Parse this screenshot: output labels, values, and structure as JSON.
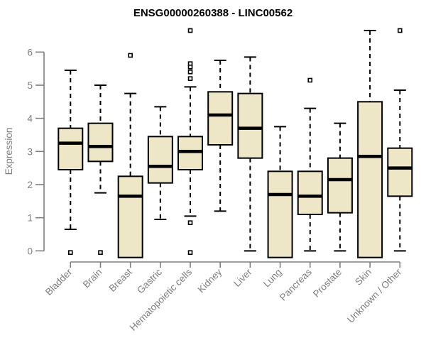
{
  "chart_data": {
    "type": "boxplot",
    "title": "ENSG00000260388 - LINC00562",
    "ylabel": "Expression",
    "xlabel": "",
    "ylim": [
      -0.5,
      6.9
    ],
    "yticks": [
      0,
      1,
      2,
      3,
      4,
      5,
      6
    ],
    "grid": "off",
    "legend": "none",
    "categories": [
      "Bladder",
      "Brain",
      "Breast",
      "Gastric",
      "Hematopoietic cells",
      "Kidney",
      "Liver",
      "Lung",
      "Pancreas",
      "Prostate",
      "Skin",
      "Unknown / Other"
    ],
    "boxes": [
      {
        "category": "Bladder",
        "low": 0.65,
        "q1": 2.45,
        "median": 3.25,
        "q3": 3.7,
        "high": 5.45,
        "outliers": [
          -0.05
        ]
      },
      {
        "category": "Brain",
        "low": 1.75,
        "q1": 2.7,
        "median": 3.15,
        "q3": 3.85,
        "high": 5.0,
        "outliers": [
          -0.05
        ]
      },
      {
        "category": "Breast",
        "low": -0.2,
        "q1": -0.2,
        "median": 1.65,
        "q3": 2.25,
        "high": 4.75,
        "outliers": [
          5.9
        ]
      },
      {
        "category": "Gastric",
        "low": 0.95,
        "q1": 2.05,
        "median": 2.55,
        "q3": 3.45,
        "high": 4.35,
        "outliers": []
      },
      {
        "category": "Hematopoietic cells",
        "low": 1.05,
        "q1": 2.45,
        "median": 3.0,
        "q3": 3.45,
        "high": 4.95,
        "outliers": [
          6.65,
          5.65,
          5.55,
          5.4,
          5.2,
          0.85,
          -0.05
        ]
      },
      {
        "category": "Kidney",
        "low": 1.2,
        "q1": 3.2,
        "median": 4.1,
        "q3": 4.8,
        "high": 5.75,
        "outliers": []
      },
      {
        "category": "Liver",
        "low": 0.0,
        "q1": 2.8,
        "median": 3.7,
        "q3": 4.75,
        "high": 5.85,
        "outliers": []
      },
      {
        "category": "Lung",
        "low": -0.2,
        "q1": -0.2,
        "median": 1.7,
        "q3": 2.4,
        "high": 3.75,
        "outliers": []
      },
      {
        "category": "Pancreas",
        "low": 0.0,
        "q1": 1.1,
        "median": 1.65,
        "q3": 2.4,
        "high": 4.3,
        "outliers": [
          5.15
        ]
      },
      {
        "category": "Prostate",
        "low": 0.0,
        "q1": 1.15,
        "median": 2.15,
        "q3": 2.8,
        "high": 3.85,
        "outliers": []
      },
      {
        "category": "Skin",
        "low": -0.2,
        "q1": -0.2,
        "median": 2.85,
        "q3": 4.5,
        "high": 6.65,
        "outliers": []
      },
      {
        "category": "Unknown / Other",
        "low": 0.0,
        "q1": 1.65,
        "median": 2.5,
        "q3": 3.1,
        "high": 4.85,
        "outliers": [
          6.65
        ]
      }
    ],
    "colors": {
      "box_fill": "#ede7c7",
      "box_border": "#000000",
      "median": "#000000",
      "whisker": "#000000",
      "outlier_stroke": "#000000",
      "outlier_fill": "#ffffff",
      "axis": "#7e7e7e",
      "title": "#000000",
      "background": "#ffffff"
    }
  }
}
